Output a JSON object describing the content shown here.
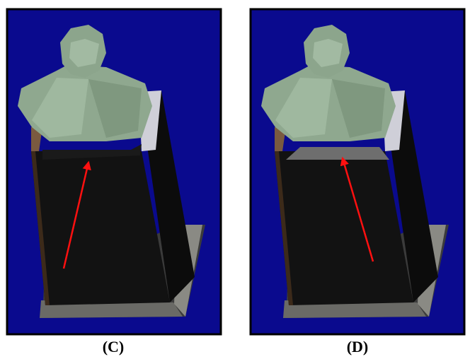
{
  "panels": [
    {
      "label": "(C)"
    },
    {
      "label": "(D)"
    }
  ]
}
